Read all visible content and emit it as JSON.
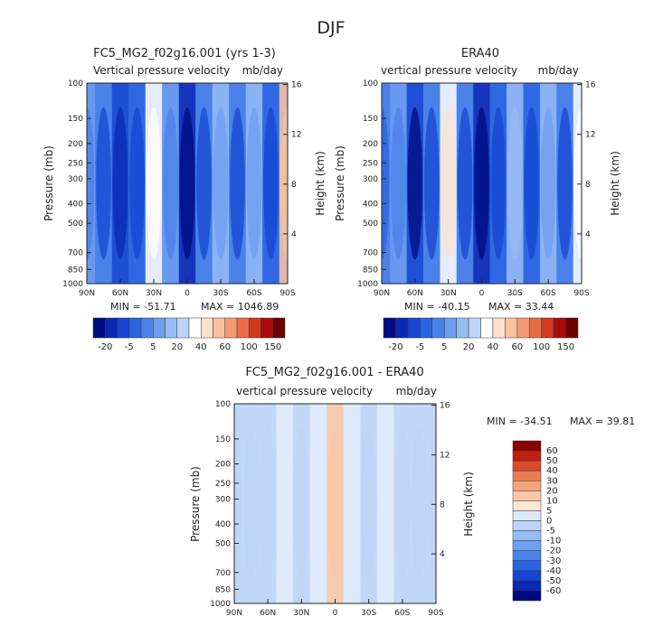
{
  "page": {
    "title": "DJF"
  },
  "colors": {
    "panel_scale": [
      "#000a80",
      "#0a28b4",
      "#1646d2",
      "#2a64e0",
      "#4a82ea",
      "#6e9ef0",
      "#96bcf4",
      "#bcd4f8",
      "#ffffff",
      "#fde1cf",
      "#f9c1a0",
      "#f29a72",
      "#e86d47",
      "#d2391e",
      "#a80c0c",
      "#6e0000"
    ],
    "diff_scale": [
      "#000a80",
      "#0a28b4",
      "#1646d2",
      "#2a64e0",
      "#4a82ea",
      "#6e9ef0",
      "#96bcf4",
      "#bcd4f8",
      "#ddeaf9",
      "#fce6d6",
      "#f9c7a5",
      "#f4a47a",
      "#ec7a52",
      "#dd4a2a",
      "#bf1e12",
      "#8a0000"
    ]
  },
  "chart_data": [
    {
      "type": "heatmap",
      "title": "FC5_MG2_f02g16.001 (yrs 1-3)",
      "variable": "Vertical pressure velocity",
      "units": "mb/day",
      "xlabel": "",
      "ylabel": "Pressure (mb)",
      "y2label": "Height (km)",
      "x_ticks": [
        "90N",
        "60N",
        "30N",
        "0",
        "30S",
        "60S",
        "90S"
      ],
      "y_ticks": [
        100,
        150,
        200,
        250,
        300,
        400,
        500,
        700,
        850,
        1000
      ],
      "y2_ticks": [
        4,
        8,
        12,
        16
      ],
      "min_label": "MIN = -51.71",
      "max_label": "MAX = 1046.89",
      "colorbar_levels": [
        "-20",
        "-5",
        "5",
        "20",
        "40",
        "60",
        "100",
        "150"
      ],
      "bands": [
        {
          "lat": 90,
          "value": -10
        },
        {
          "lat": 75,
          "value": -15
        },
        {
          "lat": 60,
          "value": -25
        },
        {
          "lat": 45,
          "value": -18
        },
        {
          "lat": 30,
          "value": 5
        },
        {
          "lat": 15,
          "value": -10
        },
        {
          "lat": 0,
          "value": -40
        },
        {
          "lat": -15,
          "value": -15
        },
        {
          "lat": -30,
          "value": -5
        },
        {
          "lat": -45,
          "value": -15
        },
        {
          "lat": -60,
          "value": -5
        },
        {
          "lat": -75,
          "value": -20
        },
        {
          "lat": -90,
          "value": 20
        }
      ]
    },
    {
      "type": "heatmap",
      "title": "ERA40",
      "variable": "vertical pressure velocity",
      "units": "mb/day",
      "xlabel": "",
      "ylabel": "Pressure (mb)",
      "y2label": "Height (km)",
      "x_ticks": [
        "90N",
        "60N",
        "30N",
        "0",
        "30S",
        "60S",
        "90S"
      ],
      "y_ticks": [
        100,
        150,
        200,
        250,
        300,
        400,
        500,
        700,
        850,
        1000
      ],
      "y2_ticks": [
        4,
        8,
        12,
        16
      ],
      "min_label": "MIN = -40.15",
      "max_label": "MAX = 33.44",
      "colorbar_levels": [
        "-20",
        "-5",
        "5",
        "20",
        "40",
        "60",
        "100",
        "150"
      ],
      "bands": [
        {
          "lat": 90,
          "value": -12
        },
        {
          "lat": 75,
          "value": -10
        },
        {
          "lat": 60,
          "value": -30
        },
        {
          "lat": 45,
          "value": -15
        },
        {
          "lat": 30,
          "value": 8
        },
        {
          "lat": 15,
          "value": -15
        },
        {
          "lat": 0,
          "value": -35
        },
        {
          "lat": -15,
          "value": -18
        },
        {
          "lat": -30,
          "value": -3
        },
        {
          "lat": -45,
          "value": -18
        },
        {
          "lat": -60,
          "value": -5
        },
        {
          "lat": -75,
          "value": -15
        },
        {
          "lat": -90,
          "value": 5
        }
      ]
    },
    {
      "type": "heatmap",
      "title": "FC5_MG2_f02g16.001 - ERA40",
      "variable": "vertical pressure velocity",
      "units": "mb/day",
      "xlabel": "",
      "ylabel": "Pressure (mb)",
      "y2label": "Height (km)",
      "x_ticks": [
        "90N",
        "60N",
        "30N",
        "0",
        "30S",
        "60S",
        "90S"
      ],
      "y_ticks": [
        100,
        150,
        200,
        250,
        300,
        400,
        500,
        700,
        850,
        1000
      ],
      "y2_ticks": [
        4,
        8,
        12,
        16
      ],
      "min_label": "MIN = -34.51",
      "max_label": "MAX = 39.81",
      "colorbar_levels": [
        "60",
        "50",
        "40",
        "30",
        "20",
        "10",
        "5",
        "0",
        "-5",
        "-10",
        "-20",
        "-30",
        "-40",
        "-50",
        "-60"
      ],
      "bands": [
        {
          "lat": 90,
          "value": -2
        },
        {
          "lat": 75,
          "value": -3
        },
        {
          "lat": 60,
          "value": -1
        },
        {
          "lat": 45,
          "value": 2
        },
        {
          "lat": 30,
          "value": -2
        },
        {
          "lat": 15,
          "value": 1
        },
        {
          "lat": 0,
          "value": 10
        },
        {
          "lat": -15,
          "value": 1
        },
        {
          "lat": -30,
          "value": -2
        },
        {
          "lat": -45,
          "value": 3
        },
        {
          "lat": -60,
          "value": -1
        },
        {
          "lat": -75,
          "value": -2
        },
        {
          "lat": -90,
          "value": -3
        }
      ]
    }
  ]
}
